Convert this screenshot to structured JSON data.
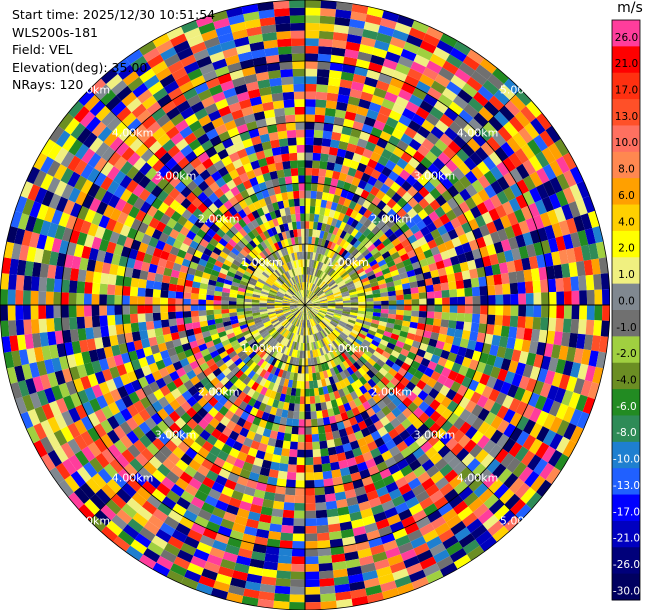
{
  "header": {
    "start_time": "Start time: 2025/12/30 10:51:54",
    "instrument": "WLS200s-181",
    "field": "Field: VEL",
    "elevation": "Elevation(deg): 35.00",
    "nrays": "NRays: 120"
  },
  "chart_data": {
    "type": "ppi-radar",
    "field": "VEL",
    "elevation_deg": 35.0,
    "n_rays": 120,
    "max_range_km": 5.0,
    "range_rings_km": [
      1.0,
      2.0,
      3.0,
      4.0,
      5.0
    ],
    "range_ring_labels": [
      "1.00km",
      "2.00km",
      "3.00km",
      "4.00km",
      "5.00km"
    ],
    "colorbar": {
      "unit": "m/s",
      "ticks": [
        "26.0",
        "21.0",
        "17.0",
        "13.0",
        "10.0",
        "8.0",
        "6.0",
        "4.0",
        "2.0",
        "1.0",
        "0.0",
        "-1.0",
        "-2.0",
        "-4.0",
        "-6.0",
        "-8.0",
        "-10.0",
        "-13.0",
        "-17.0",
        "-21.0",
        "-26.0",
        "-30.0"
      ],
      "colors": [
        "#ff3d9c",
        "#ff0000",
        "#ff3010",
        "#ff5028",
        "#ff7060",
        "#ff8850",
        "#ffa000",
        "#ffd000",
        "#ffff00",
        "#f0f080",
        "#808890",
        "#707070",
        "#a0d040",
        "#6b8e23",
        "#228b22",
        "#2e8b57",
        "#1e7fd0",
        "#2060ff",
        "#0000ff",
        "#0000c0",
        "#00007a",
        "#000060"
      ]
    }
  }
}
